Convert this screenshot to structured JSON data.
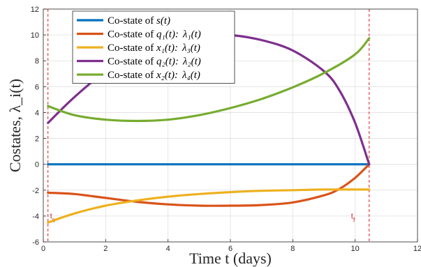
{
  "chart_data": {
    "type": "line",
    "xlabel": "Time t (days)",
    "ylabel": "Costates, λ_i(t)",
    "xlim": [
      0,
      12
    ],
    "ylim": [
      -6,
      12
    ],
    "x_ticks": [
      0,
      2,
      4,
      6,
      8,
      10,
      12
    ],
    "y_ticks": [
      -6,
      -4,
      -2,
      0,
      2,
      4,
      6,
      8,
      10,
      12
    ],
    "grid": true,
    "legend_position": "top-left",
    "vlines": [
      {
        "x": 0.15,
        "label": "t",
        "subscript": "s",
        "color": "#e41a1c"
      },
      {
        "x": 10.45,
        "label": "t",
        "subscript": "f",
        "color": "#e41a1c"
      }
    ],
    "series": [
      {
        "name": "Co-state of s(t)",
        "legend_parts": {
          "prefix": "Co-state of ",
          "main": "s(t)",
          "suffix": ""
        },
        "color": "#0072BD",
        "x": [
          0.15,
          2,
          4,
          6,
          8,
          10.45
        ],
        "y": [
          0,
          0,
          0,
          0,
          0,
          0
        ]
      },
      {
        "name": "Co-state of q1(t): λ1(t)",
        "legend_parts": {
          "prefix": "Co-state of ",
          "main": "q₁(t):",
          "suffix": "λ₁(t)"
        },
        "color": "#D95319",
        "x": [
          0.15,
          1,
          2,
          3,
          4,
          5,
          6,
          7,
          8,
          9,
          9.5,
          10,
          10.45
        ],
        "y": [
          -2.2,
          -2.3,
          -2.6,
          -2.9,
          -3.1,
          -3.2,
          -3.2,
          -3.15,
          -2.95,
          -2.4,
          -1.9,
          -1.05,
          0
        ]
      },
      {
        "name": "Co-state of x1(t): λ3(t)",
        "legend_parts": {
          "prefix": "Co-state of ",
          "main": "x₁(t):",
          "suffix": "λ₃(t)"
        },
        "color": "#EDB120",
        "x": [
          0.15,
          1,
          2,
          3,
          4,
          5,
          6,
          7,
          8,
          9,
          10,
          10.45
        ],
        "y": [
          -4.5,
          -3.8,
          -3.2,
          -2.8,
          -2.5,
          -2.3,
          -2.15,
          -2.05,
          -2.0,
          -1.95,
          -1.95,
          -1.95
        ]
      },
      {
        "name": "Co-state of q2(t): λ2(t)",
        "legend_parts": {
          "prefix": "Co-state of ",
          "main": "q₂(t):",
          "suffix": "λ₂(t)"
        },
        "color": "#7E2F8E",
        "x": [
          0.15,
          1,
          2,
          3,
          4,
          5,
          6,
          7,
          8,
          9,
          9.5,
          10,
          10.45
        ],
        "y": [
          3.2,
          5.2,
          7.2,
          8.8,
          9.8,
          10.1,
          10.0,
          9.6,
          8.8,
          7.2,
          5.7,
          3.2,
          0
        ]
      },
      {
        "name": "Co-state of x2(t): λ4(t)",
        "legend_parts": {
          "prefix": "Co-state of ",
          "main": "x₂(t):",
          "suffix": "λ₄(t)"
        },
        "color": "#77AC30",
        "x": [
          0.15,
          1,
          2,
          3,
          4,
          5,
          6,
          7,
          8,
          9,
          10,
          10.45
        ],
        "y": [
          4.5,
          3.8,
          3.45,
          3.35,
          3.45,
          3.8,
          4.35,
          5.05,
          5.95,
          7.05,
          8.5,
          9.75
        ]
      }
    ]
  }
}
